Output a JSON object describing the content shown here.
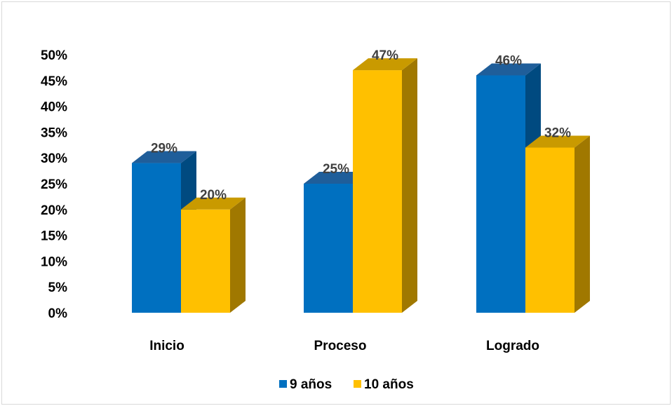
{
  "chart_data": {
    "type": "bar",
    "style": "3d-clustered-column",
    "categories": [
      "Inicio",
      "Proceso",
      "Logrado"
    ],
    "series": [
      {
        "name": "9 años",
        "values": [
          29,
          25,
          46
        ],
        "labels": [
          "29%",
          "25%",
          "46%"
        ],
        "color": "#0070C0",
        "side_color": "#004A80",
        "top_color": "#1F5E9A"
      },
      {
        "name": "10 años",
        "values": [
          20,
          47,
          32
        ],
        "labels": [
          "20%",
          "47%",
          "32%"
        ],
        "color": "#FFC000",
        "side_color": "#A07800",
        "top_color": "#C99A00"
      }
    ],
    "y_ticks": [
      "0%",
      "5%",
      "10%",
      "15%",
      "20%",
      "25%",
      "30%",
      "35%",
      "40%",
      "45%",
      "50%"
    ],
    "ylim": [
      0,
      50
    ],
    "grid": false,
    "legend_position": "bottom",
    "title": "",
    "xlabel": "",
    "ylabel": ""
  }
}
